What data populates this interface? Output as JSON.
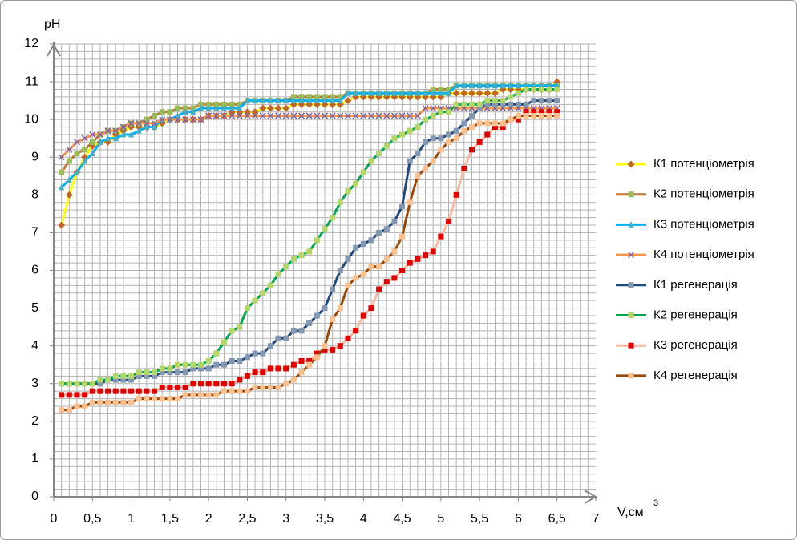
{
  "chart_data": {
    "type": "line",
    "ylabel": "pH",
    "xlabel": "V,см",
    "xlabel_superscript": "3",
    "xlim": [
      0,
      7
    ],
    "ylim": [
      0,
      12
    ],
    "xticks": [
      0,
      {
        "value": 0.5,
        "label": "0,5"
      },
      1,
      {
        "value": 1.5,
        "label": "1,5"
      },
      2,
      {
        "value": 2.5,
        "label": "2,5"
      },
      3,
      {
        "value": 3.5,
        "label": "3,5"
      },
      4,
      {
        "value": 4.5,
        "label": "4,5"
      },
      5,
      {
        "value": 5.5,
        "label": "5,5"
      },
      6,
      {
        "value": 6.5,
        "label": "6,5"
      },
      7
    ],
    "yticks": [
      0,
      1,
      2,
      3,
      4,
      5,
      6,
      7,
      8,
      9,
      10,
      11,
      12
    ],
    "grid": true,
    "x_minor_step": 0.1,
    "y_minor_step": 0.2,
    "legend": "right",
    "x": [
      0.1,
      0.2,
      0.3,
      0.4,
      0.5,
      0.6,
      0.7,
      0.8,
      0.9,
      1.0,
      1.1,
      1.2,
      1.3,
      1.4,
      1.5,
      1.6,
      1.7,
      1.8,
      1.9,
      2.0,
      2.1,
      2.2,
      2.3,
      2.4,
      2.5,
      2.6,
      2.7,
      2.8,
      2.9,
      3.0,
      3.1,
      3.2,
      3.3,
      3.4,
      3.5,
      3.6,
      3.7,
      3.8,
      3.9,
      4.0,
      4.1,
      4.2,
      4.3,
      4.4,
      4.5,
      4.6,
      4.7,
      4.8,
      4.9,
      5.0,
      5.1,
      5.2,
      5.3,
      5.4,
      5.5,
      5.6,
      5.7,
      5.8,
      5.9,
      6.0,
      6.1,
      6.2,
      6.3,
      6.4,
      6.5
    ],
    "series": [
      {
        "name": "К1 потенціометрія",
        "color": "#ffff00",
        "marker_color": "#c0662a",
        "marker": "diamond",
        "values": [
          7.2,
          8.0,
          8.6,
          9.0,
          9.3,
          9.4,
          9.4,
          9.6,
          9.7,
          9.8,
          9.8,
          9.8,
          9.8,
          9.9,
          10.0,
          10.0,
          10.0,
          10.0,
          10.0,
          10.1,
          10.1,
          10.1,
          10.2,
          10.2,
          10.2,
          10.2,
          10.3,
          10.3,
          10.3,
          10.3,
          10.4,
          10.4,
          10.4,
          10.4,
          10.4,
          10.4,
          10.4,
          10.5,
          10.6,
          10.6,
          10.6,
          10.6,
          10.6,
          10.6,
          10.6,
          10.6,
          10.6,
          10.6,
          10.6,
          10.6,
          10.7,
          10.7,
          10.7,
          10.7,
          10.7,
          10.7,
          10.7,
          10.8,
          10.8,
          10.8,
          10.8,
          10.8,
          10.8,
          10.8,
          11.0
        ]
      },
      {
        "name": "К2 потенціометрія",
        "color": "#c0773a",
        "marker_color": "#9bbb59",
        "marker": "square",
        "values": [
          8.6,
          8.9,
          9.1,
          9.2,
          9.4,
          9.6,
          9.7,
          9.7,
          9.8,
          9.9,
          9.9,
          10.0,
          10.1,
          10.2,
          10.2,
          10.3,
          10.3,
          10.3,
          10.4,
          10.4,
          10.4,
          10.4,
          10.4,
          10.4,
          10.5,
          10.5,
          10.5,
          10.5,
          10.5,
          10.5,
          10.6,
          10.6,
          10.6,
          10.6,
          10.6,
          10.6,
          10.6,
          10.7,
          10.7,
          10.7,
          10.7,
          10.7,
          10.7,
          10.7,
          10.7,
          10.7,
          10.7,
          10.7,
          10.8,
          10.8,
          10.8,
          10.9,
          10.9,
          10.9,
          10.9,
          10.9,
          10.9,
          10.9,
          10.9,
          10.9,
          10.9,
          10.9,
          10.9,
          10.9,
          10.9
        ]
      },
      {
        "name": "К3 потенціометрія",
        "color": "#00b0f0",
        "marker_color": "#4bacc6",
        "marker": "triangle",
        "values": [
          8.2,
          8.4,
          8.6,
          8.9,
          9.1,
          9.4,
          9.5,
          9.5,
          9.6,
          9.6,
          9.7,
          9.8,
          9.8,
          10.0,
          10.0,
          10.1,
          10.2,
          10.2,
          10.3,
          10.3,
          10.3,
          10.3,
          10.3,
          10.3,
          10.5,
          10.5,
          10.5,
          10.5,
          10.5,
          10.5,
          10.5,
          10.5,
          10.5,
          10.5,
          10.5,
          10.5,
          10.5,
          10.7,
          10.7,
          10.7,
          10.7,
          10.7,
          10.7,
          10.7,
          10.7,
          10.7,
          10.7,
          10.7,
          10.7,
          10.7,
          10.7,
          10.9,
          10.9,
          10.9,
          10.9,
          10.9,
          10.9,
          10.9,
          10.9,
          10.9,
          10.9,
          10.9,
          10.9,
          10.9,
          10.9
        ]
      },
      {
        "name": "К4 потенціометрія",
        "color": "#f79646",
        "marker_color": "#8064a2",
        "marker": "x",
        "values": [
          9.0,
          9.2,
          9.4,
          9.5,
          9.6,
          9.6,
          9.7,
          9.7,
          9.8,
          9.9,
          9.9,
          9.9,
          9.9,
          10.0,
          10.0,
          10.0,
          10.0,
          10.0,
          10.0,
          10.1,
          10.1,
          10.1,
          10.1,
          10.1,
          10.1,
          10.1,
          10.1,
          10.1,
          10.1,
          10.1,
          10.1,
          10.1,
          10.1,
          10.1,
          10.1,
          10.1,
          10.1,
          10.1,
          10.1,
          10.1,
          10.1,
          10.1,
          10.1,
          10.1,
          10.1,
          10.1,
          10.1,
          10.3,
          10.3,
          10.3,
          10.3,
          10.3,
          10.3,
          10.3,
          10.3,
          10.3,
          10.3,
          10.3,
          10.3,
          10.3,
          10.3,
          10.3,
          10.3,
          10.3,
          10.3
        ]
      },
      {
        "name": "К1 регенерація",
        "color": "#1f497d",
        "marker_color": "#8497b0",
        "marker": "square",
        "values": [
          3.0,
          3.0,
          3.0,
          3.0,
          3.0,
          3.0,
          3.1,
          3.1,
          3.1,
          3.1,
          3.2,
          3.2,
          3.2,
          3.3,
          3.3,
          3.3,
          3.3,
          3.4,
          3.4,
          3.4,
          3.5,
          3.5,
          3.6,
          3.6,
          3.7,
          3.8,
          3.8,
          4.0,
          4.2,
          4.2,
          4.4,
          4.4,
          4.6,
          4.8,
          5.0,
          5.5,
          6.0,
          6.3,
          6.6,
          6.7,
          6.8,
          7.0,
          7.1,
          7.3,
          7.7,
          8.9,
          9.1,
          9.4,
          9.5,
          9.5,
          9.6,
          9.7,
          9.9,
          10.1,
          10.3,
          10.4,
          10.4,
          10.4,
          10.4,
          10.4,
          10.4,
          10.5,
          10.5,
          10.5,
          10.5
        ]
      },
      {
        "name": "К2 регенерація",
        "color": "#00a651",
        "marker_color": "#b5d66a",
        "marker": "square",
        "values": [
          3.0,
          3.0,
          3.0,
          3.0,
          3.0,
          3.1,
          3.1,
          3.2,
          3.2,
          3.2,
          3.3,
          3.3,
          3.3,
          3.4,
          3.4,
          3.5,
          3.5,
          3.5,
          3.5,
          3.6,
          3.8,
          4.1,
          4.4,
          4.5,
          5.0,
          5.2,
          5.4,
          5.6,
          5.9,
          6.1,
          6.3,
          6.4,
          6.5,
          6.8,
          7.1,
          7.4,
          7.8,
          8.1,
          8.3,
          8.6,
          8.9,
          9.1,
          9.3,
          9.5,
          9.6,
          9.7,
          9.8,
          10.0,
          10.1,
          10.2,
          10.2,
          10.4,
          10.4,
          10.4,
          10.4,
          10.5,
          10.5,
          10.5,
          10.6,
          10.7,
          10.8,
          10.8,
          10.8,
          10.8,
          10.8
        ]
      },
      {
        "name": "К3 регенерація",
        "color": "#f9b9a0",
        "marker_color": "#e00000",
        "marker": "square",
        "values": [
          2.7,
          2.7,
          2.7,
          2.7,
          2.8,
          2.8,
          2.8,
          2.8,
          2.8,
          2.8,
          2.8,
          2.8,
          2.8,
          2.9,
          2.9,
          2.9,
          2.9,
          3.0,
          3.0,
          3.0,
          3.0,
          3.0,
          3.0,
          3.1,
          3.2,
          3.3,
          3.3,
          3.4,
          3.4,
          3.4,
          3.5,
          3.6,
          3.6,
          3.8,
          3.9,
          3.9,
          4.0,
          4.2,
          4.4,
          4.8,
          5.0,
          5.5,
          5.7,
          5.8,
          6.0,
          6.2,
          6.3,
          6.4,
          6.5,
          6.9,
          7.3,
          8.0,
          8.7,
          9.2,
          9.4,
          9.6,
          9.8,
          9.8,
          10.0,
          10.0,
          10.2,
          10.2,
          10.2,
          10.2,
          10.2
        ]
      },
      {
        "name": "К4 регенерація",
        "color": "#984807",
        "marker_color": "#fac090",
        "marker": "square",
        "values": [
          2.3,
          2.3,
          2.4,
          2.4,
          2.5,
          2.5,
          2.5,
          2.5,
          2.5,
          2.5,
          2.6,
          2.6,
          2.6,
          2.6,
          2.6,
          2.6,
          2.7,
          2.7,
          2.7,
          2.7,
          2.7,
          2.8,
          2.8,
          2.8,
          2.8,
          2.9,
          2.9,
          2.9,
          2.9,
          3.0,
          3.1,
          3.3,
          3.5,
          3.7,
          4.0,
          4.7,
          5.0,
          5.6,
          5.8,
          5.9,
          6.1,
          6.1,
          6.3,
          6.5,
          6.9,
          7.8,
          8.5,
          8.7,
          8.9,
          9.2,
          9.4,
          9.5,
          9.7,
          9.8,
          9.9,
          9.9,
          9.9,
          9.9,
          10.0,
          10.1,
          10.1,
          10.1,
          10.1,
          10.1,
          10.1
        ]
      }
    ]
  }
}
